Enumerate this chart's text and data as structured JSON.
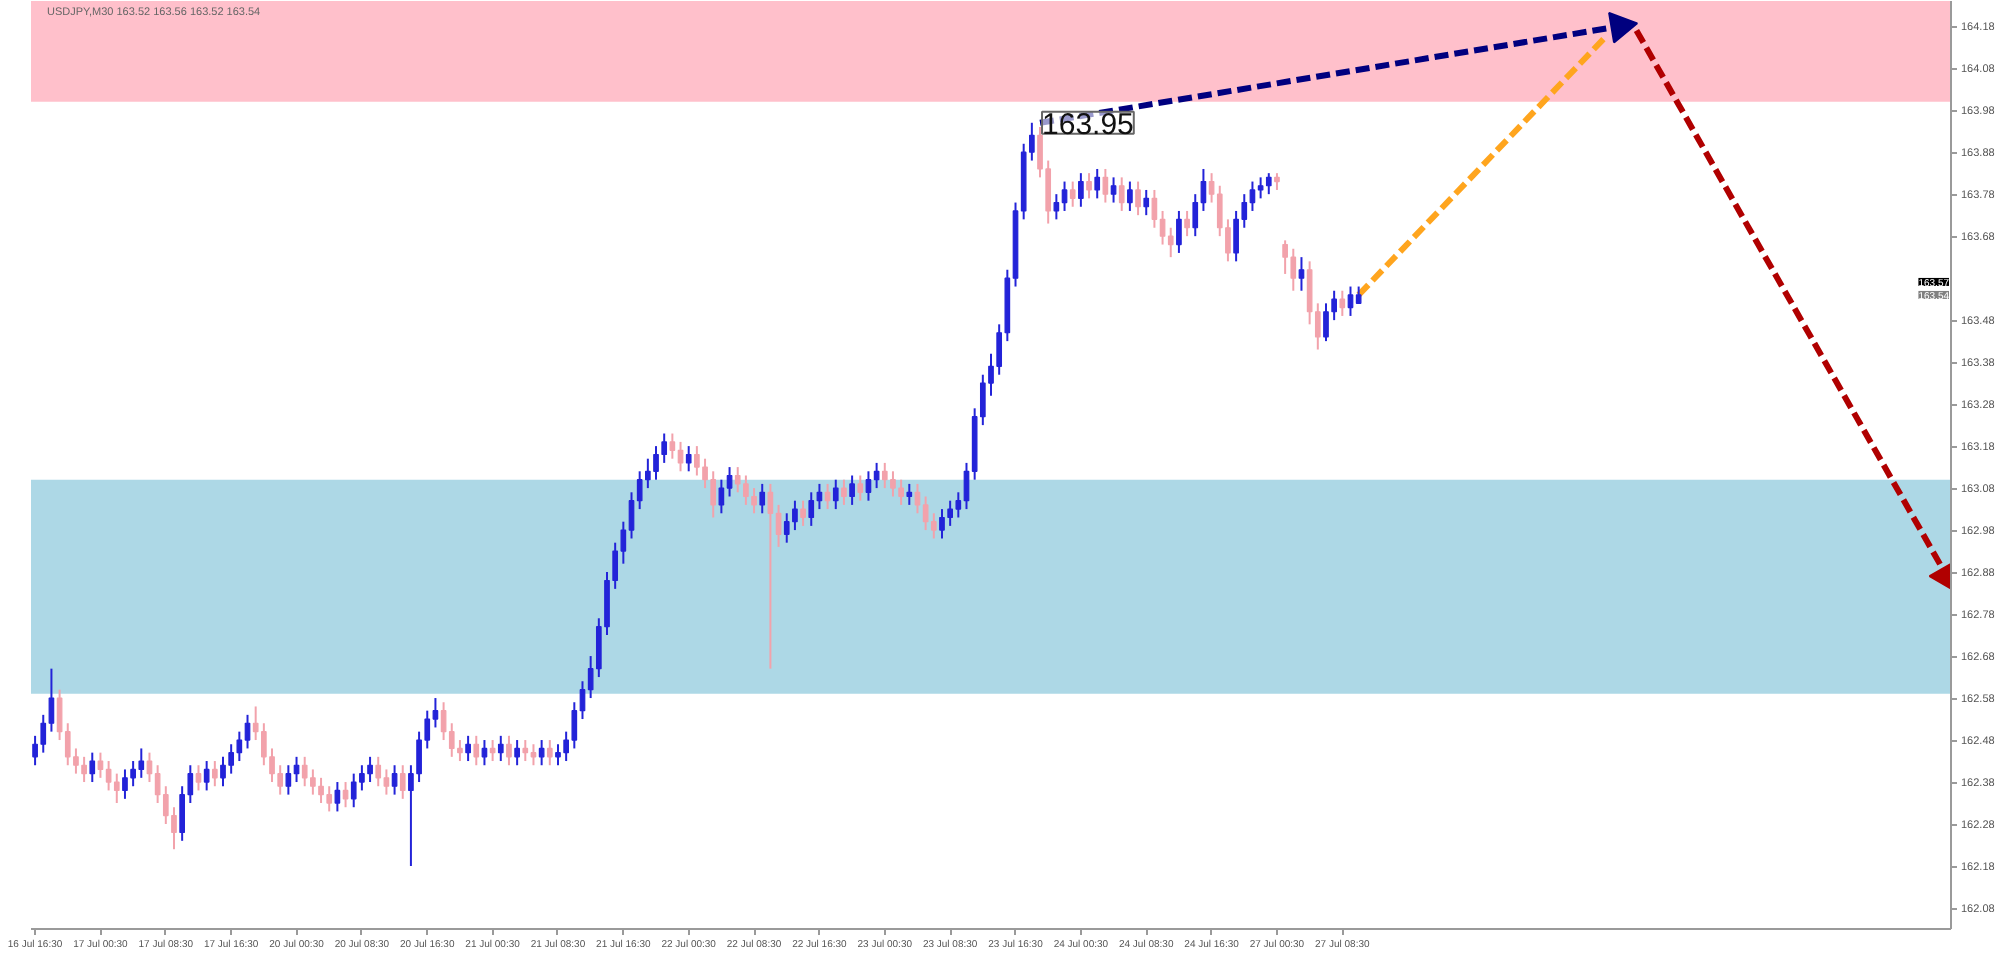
{
  "chart_data": {
    "type": "candlestick",
    "title": "USDJPY,M30 163.52 163.56 163.52 163.54",
    "categories": [
      "16 Jul 16:30",
      null,
      null,
      null,
      null,
      null,
      null,
      null,
      "17 Jul 00:30",
      null,
      null,
      null,
      null,
      null,
      null,
      null,
      "17 Jul 08:30",
      null,
      null,
      null,
      null,
      null,
      null,
      null,
      "17 Jul 16:30",
      null,
      null,
      null,
      null,
      null,
      null,
      null,
      "20 Jul 00:30",
      null,
      null,
      null,
      null,
      null,
      null,
      null,
      "20 Jul 08:30",
      null,
      null,
      null,
      null,
      null,
      null,
      null,
      "20 Jul 16:30",
      null,
      null,
      null,
      null,
      null,
      null,
      null,
      "21 Jul 00:30",
      null,
      null,
      null,
      null,
      null,
      null,
      null,
      "21 Jul 08:30",
      null,
      null,
      null,
      null,
      null,
      null,
      null,
      "21 Jul 16:30",
      null,
      null,
      null,
      null,
      null,
      null,
      null,
      "22 Jul 00:30",
      null,
      null,
      null,
      null,
      null,
      null,
      null,
      "22 Jul 08:30",
      null,
      null,
      null,
      null,
      null,
      null,
      null,
      "22 Jul 16:30",
      null,
      null,
      null,
      null,
      null,
      null,
      null,
      "23 Jul 00:30",
      null,
      null,
      null,
      null,
      null,
      null,
      null,
      "23 Jul 08:30",
      null,
      null,
      null,
      null,
      null,
      null,
      null,
      "23 Jul 16:30",
      null,
      null,
      null,
      null,
      null,
      null,
      null,
      "24 Jul 00:30",
      null,
      null,
      null,
      null,
      null,
      null,
      null,
      "24 Jul 08:30",
      null,
      null,
      null,
      null,
      null,
      null,
      null,
      "24 Jul 16:30",
      null,
      null,
      null,
      null,
      null,
      null,
      null,
      "27 Jul 00:30",
      null,
      null,
      null,
      null,
      null,
      null,
      null,
      "27 Jul 08:30",
      null,
      null,
      null,
      null,
      null,
      null,
      null,
      null,
      null,
      null,
      null,
      null,
      null,
      null,
      null,
      null,
      null,
      null,
      null,
      null,
      null,
      null,
      null,
      null,
      null,
      null,
      null,
      null,
      null,
      null,
      null,
      null,
      null,
      null,
      null,
      null,
      null,
      null,
      null,
      null,
      null,
      null,
      null,
      null,
      null,
      null,
      null,
      null,
      null,
      null,
      null,
      null,
      null,
      null,
      null,
      null,
      null,
      null,
      null,
      null,
      null,
      null,
      null,
      null,
      null,
      null,
      null,
      null,
      null,
      null,
      null,
      null,
      null,
      null
    ],
    "ohlc": [
      [
        162.44,
        162.49,
        162.42,
        162.47
      ],
      [
        162.47,
        162.54,
        162.45,
        162.52
      ],
      [
        162.52,
        162.65,
        162.5,
        162.58
      ],
      [
        162.58,
        162.6,
        162.48,
        162.5
      ],
      [
        162.5,
        162.52,
        162.42,
        162.44
      ],
      [
        162.44,
        162.46,
        162.4,
        162.42
      ],
      [
        162.42,
        162.44,
        162.38,
        162.4
      ],
      [
        162.4,
        162.45,
        162.38,
        162.43
      ],
      [
        162.43,
        162.45,
        162.39,
        162.41
      ],
      [
        162.41,
        162.43,
        162.36,
        162.38
      ],
      [
        162.38,
        162.4,
        162.33,
        162.36
      ],
      [
        162.36,
        162.41,
        162.34,
        162.39
      ],
      [
        162.39,
        162.43,
        162.37,
        162.41
      ],
      [
        162.41,
        162.46,
        162.39,
        162.43
      ],
      [
        162.43,
        162.45,
        162.38,
        162.4
      ],
      [
        162.4,
        162.42,
        162.33,
        162.35
      ],
      [
        162.35,
        162.37,
        162.28,
        162.3
      ],
      [
        162.3,
        162.32,
        162.22,
        162.26
      ],
      [
        162.26,
        162.37,
        162.24,
        162.35
      ],
      [
        162.35,
        162.42,
        162.33,
        162.4
      ],
      [
        162.4,
        162.42,
        162.36,
        162.38
      ],
      [
        162.38,
        162.43,
        162.36,
        162.41
      ],
      [
        162.41,
        162.43,
        162.37,
        162.39
      ],
      [
        162.39,
        162.44,
        162.37,
        162.42
      ],
      [
        162.42,
        162.47,
        162.4,
        162.45
      ],
      [
        162.45,
        162.5,
        162.43,
        162.48
      ],
      [
        162.48,
        162.54,
        162.46,
        162.52
      ],
      [
        162.52,
        162.56,
        162.48,
        162.5
      ],
      [
        162.5,
        162.52,
        162.42,
        162.44
      ],
      [
        162.44,
        162.46,
        162.38,
        162.4
      ],
      [
        162.4,
        162.42,
        162.35,
        162.37
      ],
      [
        162.37,
        162.42,
        162.35,
        162.4
      ],
      [
        162.4,
        162.44,
        162.38,
        162.42
      ],
      [
        162.42,
        162.44,
        162.37,
        162.39
      ],
      [
        162.39,
        162.41,
        162.35,
        162.37
      ],
      [
        162.37,
        162.39,
        162.33,
        162.35
      ],
      [
        162.35,
        162.37,
        162.31,
        162.33
      ],
      [
        162.33,
        162.38,
        162.31,
        162.36
      ],
      [
        162.36,
        162.38,
        162.32,
        162.34
      ],
      [
        162.34,
        162.4,
        162.32,
        162.38
      ],
      [
        162.38,
        162.42,
        162.36,
        162.4
      ],
      [
        162.4,
        162.44,
        162.38,
        162.42
      ],
      [
        162.42,
        162.44,
        162.37,
        162.39
      ],
      [
        162.39,
        162.41,
        162.35,
        162.37
      ],
      [
        162.37,
        162.42,
        162.35,
        162.4
      ],
      [
        162.4,
        162.42,
        162.34,
        162.36
      ],
      [
        162.36,
        162.42,
        162.18,
        162.4
      ],
      [
        162.4,
        162.5,
        162.38,
        162.48
      ],
      [
        162.48,
        162.55,
        162.46,
        162.53
      ],
      [
        162.53,
        162.58,
        162.51,
        162.55
      ],
      [
        162.55,
        162.57,
        162.48,
        162.5
      ],
      [
        162.5,
        162.52,
        162.44,
        162.46
      ],
      [
        162.46,
        162.48,
        162.43,
        162.45
      ],
      [
        162.45,
        162.49,
        162.43,
        162.47
      ],
      [
        162.47,
        162.49,
        162.42,
        162.44
      ],
      [
        162.44,
        162.48,
        162.42,
        162.46
      ],
      [
        162.46,
        162.48,
        162.43,
        162.45
      ],
      [
        162.45,
        162.49,
        162.43,
        162.47
      ],
      [
        162.47,
        162.49,
        162.42,
        162.44
      ],
      [
        162.44,
        162.48,
        162.42,
        162.46
      ],
      [
        162.46,
        162.48,
        162.43,
        162.45
      ],
      [
        162.45,
        162.47,
        162.42,
        162.44
      ],
      [
        162.44,
        162.48,
        162.42,
        162.46
      ],
      [
        162.46,
        162.48,
        162.42,
        162.44
      ],
      [
        162.44,
        162.47,
        162.42,
        162.45
      ],
      [
        162.45,
        162.5,
        162.43,
        162.48
      ],
      [
        162.48,
        162.57,
        162.46,
        162.55
      ],
      [
        162.55,
        162.62,
        162.53,
        162.6
      ],
      [
        162.6,
        162.68,
        162.58,
        162.65
      ],
      [
        162.65,
        162.77,
        162.63,
        162.75
      ],
      [
        162.75,
        162.88,
        162.73,
        162.86
      ],
      [
        162.86,
        162.95,
        162.84,
        162.93
      ],
      [
        162.93,
        163.0,
        162.9,
        162.98
      ],
      [
        162.98,
        163.07,
        162.96,
        163.05
      ],
      [
        163.05,
        163.12,
        163.03,
        163.1
      ],
      [
        163.1,
        163.15,
        163.08,
        163.12
      ],
      [
        163.12,
        163.18,
        163.1,
        163.16
      ],
      [
        163.16,
        163.21,
        163.14,
        163.19
      ],
      [
        163.19,
        163.21,
        163.15,
        163.17
      ],
      [
        163.17,
        163.19,
        163.12,
        163.14
      ],
      [
        163.14,
        163.18,
        163.12,
        163.16
      ],
      [
        163.16,
        163.18,
        163.11,
        163.13
      ],
      [
        163.13,
        163.15,
        163.08,
        163.1
      ],
      [
        163.1,
        163.12,
        163.01,
        163.04
      ],
      [
        163.04,
        163.1,
        163.02,
        163.08
      ],
      [
        163.08,
        163.13,
        163.06,
        163.11
      ],
      [
        163.11,
        163.13,
        163.07,
        163.09
      ],
      [
        163.09,
        163.11,
        163.04,
        163.06
      ],
      [
        163.06,
        163.08,
        163.02,
        163.04
      ],
      [
        163.04,
        163.09,
        163.02,
        163.07
      ],
      [
        163.07,
        163.09,
        162.65,
        163.02
      ],
      [
        163.02,
        163.04,
        162.94,
        162.97
      ],
      [
        162.97,
        163.02,
        162.95,
        163.0
      ],
      [
        163.0,
        163.05,
        162.98,
        163.03
      ],
      [
        163.03,
        163.05,
        162.99,
        163.01
      ],
      [
        163.01,
        163.07,
        162.99,
        163.05
      ],
      [
        163.05,
        163.09,
        163.03,
        163.07
      ],
      [
        163.07,
        163.09,
        163.03,
        163.05
      ],
      [
        163.05,
        163.1,
        163.03,
        163.08
      ],
      [
        163.08,
        163.1,
        163.04,
        163.06
      ],
      [
        163.06,
        163.11,
        163.04,
        163.09
      ],
      [
        163.09,
        163.11,
        163.05,
        163.07
      ],
      [
        163.07,
        163.12,
        163.05,
        163.1
      ],
      [
        163.1,
        163.14,
        163.08,
        163.12
      ],
      [
        163.12,
        163.14,
        163.08,
        163.1
      ],
      [
        163.1,
        163.12,
        163.06,
        163.08
      ],
      [
        163.08,
        163.1,
        163.04,
        163.06
      ],
      [
        163.06,
        163.09,
        163.04,
        163.07
      ],
      [
        163.07,
        163.09,
        163.02,
        163.04
      ],
      [
        163.04,
        163.06,
        162.98,
        163.0
      ],
      [
        163.0,
        163.02,
        162.96,
        162.98
      ],
      [
        162.98,
        163.03,
        162.96,
        163.01
      ],
      [
        163.01,
        163.05,
        162.99,
        163.03
      ],
      [
        163.03,
        163.07,
        163.01,
        163.05
      ],
      [
        163.05,
        163.14,
        163.03,
        163.12
      ],
      [
        163.12,
        163.27,
        163.1,
        163.25
      ],
      [
        163.25,
        163.35,
        163.23,
        163.33
      ],
      [
        163.33,
        163.4,
        163.3,
        163.37
      ],
      [
        163.37,
        163.47,
        163.35,
        163.45
      ],
      [
        163.45,
        163.6,
        163.43,
        163.58
      ],
      [
        163.58,
        163.76,
        163.56,
        163.74
      ],
      [
        163.74,
        163.9,
        163.72,
        163.88
      ],
      [
        163.88,
        163.95,
        163.86,
        163.92
      ],
      [
        163.92,
        163.94,
        163.82,
        163.84
      ],
      [
        163.84,
        163.86,
        163.71,
        163.74
      ],
      [
        163.74,
        163.78,
        163.72,
        163.76
      ],
      [
        163.76,
        163.81,
        163.74,
        163.79
      ],
      [
        163.79,
        163.81,
        163.75,
        163.77
      ],
      [
        163.77,
        163.83,
        163.75,
        163.81
      ],
      [
        163.81,
        163.83,
        163.77,
        163.79
      ],
      [
        163.79,
        163.84,
        163.77,
        163.82
      ],
      [
        163.82,
        163.84,
        163.76,
        163.78
      ],
      [
        163.78,
        163.82,
        163.76,
        163.8
      ],
      [
        163.8,
        163.82,
        163.74,
        163.76
      ],
      [
        163.76,
        163.81,
        163.74,
        163.79
      ],
      [
        163.79,
        163.81,
        163.73,
        163.75
      ],
      [
        163.75,
        163.79,
        163.73,
        163.77
      ],
      [
        163.77,
        163.79,
        163.7,
        163.72
      ],
      [
        163.72,
        163.74,
        163.66,
        163.68
      ],
      [
        163.68,
        163.7,
        163.63,
        163.66
      ],
      [
        163.66,
        163.74,
        163.64,
        163.72
      ],
      [
        163.72,
        163.74,
        163.68,
        163.7
      ],
      [
        163.7,
        163.78,
        163.68,
        163.76
      ],
      [
        163.76,
        163.84,
        163.74,
        163.81
      ],
      [
        163.81,
        163.83,
        163.76,
        163.78
      ],
      [
        163.78,
        163.8,
        163.68,
        163.7
      ],
      [
        163.7,
        163.72,
        163.62,
        163.64
      ],
      [
        163.64,
        163.74,
        163.62,
        163.72
      ],
      [
        163.72,
        163.78,
        163.7,
        163.76
      ],
      [
        163.76,
        163.81,
        163.74,
        163.79
      ],
      [
        163.79,
        163.82,
        163.77,
        163.8
      ],
      [
        163.8,
        163.83,
        163.78,
        163.82
      ],
      [
        163.82,
        163.83,
        163.79,
        163.81
      ],
      [
        163.66,
        163.67,
        163.59,
        163.63
      ],
      [
        163.63,
        163.65,
        163.55,
        163.58
      ],
      [
        163.58,
        163.63,
        163.55,
        163.6
      ],
      [
        163.6,
        163.62,
        163.47,
        163.5
      ],
      [
        163.5,
        163.52,
        163.41,
        163.44
      ],
      [
        163.44,
        163.52,
        163.43,
        163.5
      ],
      [
        163.5,
        163.55,
        163.48,
        163.53
      ],
      [
        163.53,
        163.55,
        163.49,
        163.51
      ],
      [
        163.51,
        163.56,
        163.49,
        163.54
      ],
      [
        163.52,
        163.56,
        163.52,
        163.54
      ],
      null,
      null,
      null,
      null,
      null,
      null,
      null,
      null,
      null,
      null,
      null,
      null,
      null,
      null,
      null,
      null,
      null,
      null,
      null,
      null,
      null,
      null,
      null,
      null,
      null,
      null,
      null,
      null,
      null,
      null,
      null,
      null,
      null,
      null,
      null,
      null,
      null,
      null,
      null,
      null,
      null,
      null,
      null,
      null,
      null,
      null,
      null,
      null,
      null,
      null,
      null,
      null,
      null,
      null,
      null,
      null,
      null,
      null,
      null,
      null,
      null,
      null,
      null,
      null,
      null,
      null,
      null,
      null,
      null,
      null,
      null,
      null
    ],
    "colors": [
      "#2323d8",
      "#2323d8",
      "#2323d8",
      "#f2a2ab",
      "#f2a2ab",
      "#f2a2ab",
      "#f2a2ab",
      "#2323d8",
      "#f2a2ab",
      "#f2a2ab",
      "#f2a2ab",
      "#2323d8",
      "#2323d8",
      "#2323d8",
      "#f2a2ab",
      "#f2a2ab",
      "#f2a2ab",
      "#f2a2ab",
      "#2323d8",
      "#2323d8",
      "#f2a2ab",
      "#2323d8",
      "#f2a2ab",
      "#2323d8",
      "#2323d8",
      "#2323d8",
      "#2323d8",
      "#f2a2ab",
      "#f2a2ab",
      "#f2a2ab",
      "#f2a2ab",
      "#2323d8",
      "#2323d8",
      "#f2a2ab",
      "#f2a2ab",
      "#f2a2ab",
      "#f2a2ab",
      "#2323d8",
      "#f2a2ab",
      "#2323d8",
      "#2323d8",
      "#2323d8",
      "#f2a2ab",
      "#f2a2ab",
      "#2323d8",
      "#f2a2ab",
      "#2323d8",
      "#2323d8",
      "#2323d8",
      "#2323d8",
      "#f2a2ab",
      "#f2a2ab",
      "#f2a2ab",
      "#2323d8",
      "#f2a2ab",
      "#2323d8",
      "#f2a2ab",
      "#2323d8",
      "#f2a2ab",
      "#2323d8",
      "#f2a2ab",
      "#f2a2ab",
      "#2323d8",
      "#f2a2ab",
      "#2323d8",
      "#2323d8",
      "#2323d8",
      "#2323d8",
      "#2323d8",
      "#2323d8",
      "#2323d8",
      "#2323d8",
      "#2323d8",
      "#2323d8",
      "#2323d8",
      "#2323d8",
      "#2323d8",
      "#2323d8",
      "#f2a2ab",
      "#f2a2ab",
      "#2323d8",
      "#f2a2ab",
      "#f2a2ab",
      "#f2a2ab",
      "#2323d8",
      "#2323d8",
      "#f2a2ab",
      "#f2a2ab",
      "#f2a2ab",
      "#2323d8",
      "#f2a2ab",
      "#f2a2ab",
      "#2323d8",
      "#2323d8",
      "#f2a2ab",
      "#2323d8",
      "#2323d8",
      "#f2a2ab",
      "#2323d8",
      "#f2a2ab",
      "#2323d8",
      "#f2a2ab",
      "#2323d8",
      "#2323d8",
      "#f2a2ab",
      "#f2a2ab",
      "#f2a2ab",
      "#2323d8",
      "#f2a2ab",
      "#f2a2ab",
      "#f2a2ab",
      "#2323d8",
      "#2323d8",
      "#2323d8",
      "#2323d8",
      "#2323d8",
      "#2323d8",
      "#2323d8",
      "#2323d8",
      "#2323d8",
      "#2323d8",
      "#2323d8",
      "#2323d8",
      "#f2a2ab",
      "#f2a2ab",
      "#2323d8",
      "#2323d8",
      "#f2a2ab",
      "#2323d8",
      "#f2a2ab",
      "#2323d8",
      "#f2a2ab",
      "#2323d8",
      "#f2a2ab",
      "#2323d8",
      "#f2a2ab",
      "#2323d8",
      "#f2a2ab",
      "#f2a2ab",
      "#f2a2ab",
      "#2323d8",
      "#f2a2ab",
      "#2323d8",
      "#2323d8",
      "#f2a2ab",
      "#f2a2ab",
      "#f2a2ab",
      "#2323d8",
      "#2323d8",
      "#2323d8",
      "#2323d8",
      "#2323d8",
      "#f2a2ab",
      "#f2a2ab",
      "#f2a2ab",
      "#2323d8",
      "#f2a2ab",
      "#f2a2ab",
      "#2323d8",
      "#2323d8",
      "#f2a2ab",
      "#2323d8",
      "#2323d8",
      null,
      null,
      null,
      null,
      null,
      null,
      null,
      null,
      null,
      null,
      null,
      null,
      null,
      null,
      null,
      null,
      null,
      null,
      null,
      null,
      null,
      null,
      null,
      null,
      null,
      null,
      null,
      null,
      null,
      null,
      null,
      null,
      null,
      null,
      null,
      null,
      null,
      null,
      null,
      null,
      null,
      null,
      null,
      null,
      null,
      null,
      null,
      null,
      null,
      null,
      null,
      null,
      null,
      null,
      null,
      null,
      null,
      null,
      null,
      null,
      null,
      null,
      null,
      null,
      null,
      null,
      null,
      null,
      null,
      null,
      null,
      null
    ],
    "series": [
      {
        "type": "line",
        "color": "#ffa51e",
        "line_style": "dashed",
        "values": [
          null,
          null,
          null,
          null,
          null,
          null,
          null,
          null,
          null,
          null,
          null,
          null,
          null,
          null,
          null,
          null,
          null,
          null,
          null,
          null,
          null,
          null,
          null,
          null,
          null,
          null,
          null,
          null,
          null,
          null,
          null,
          null,
          null,
          null,
          null,
          null,
          null,
          null,
          null,
          null,
          null,
          null,
          null,
          null,
          null,
          null,
          null,
          null,
          null,
          null,
          null,
          null,
          null,
          null,
          null,
          null,
          null,
          null,
          null,
          null,
          null,
          null,
          null,
          null,
          null,
          null,
          null,
          null,
          null,
          null,
          null,
          null,
          null,
          null,
          null,
          null,
          null,
          null,
          null,
          null,
          null,
          null,
          null,
          null,
          null,
          null,
          null,
          null,
          null,
          null,
          null,
          null,
          null,
          null,
          null,
          null,
          null,
          null,
          null,
          null,
          null,
          null,
          null,
          null,
          null,
          null,
          null,
          null,
          null,
          null,
          null,
          null,
          null,
          null,
          null,
          null,
          null,
          null,
          null,
          null,
          null,
          null,
          null,
          null,
          null,
          null,
          null,
          null,
          null,
          null,
          null,
          null,
          null,
          null,
          null,
          null,
          null,
          null,
          null,
          null,
          null,
          null,
          null,
          null,
          null,
          null,
          null,
          null,
          null,
          null,
          null,
          null,
          null,
          null,
          null,
          null,
          null,
          null,
          null,
          null,
          null,
          null,
          163.54,
          null,
          null,
          null,
          null,
          null,
          null,
          null,
          null,
          null,
          null,
          null,
          null,
          null,
          null,
          null,
          null,
          null,
          null,
          null,
          null,
          null,
          null,
          null,
          null,
          null,
          null,
          null,
          null,
          null,
          164.15,
          null,
          null,
          null,
          null,
          null,
          null,
          null,
          null,
          null,
          null,
          null,
          null,
          null,
          null,
          null,
          null,
          null,
          null,
          null,
          null,
          null,
          null,
          null,
          null,
          null,
          null,
          null,
          null,
          null,
          null,
          null,
          null,
          null,
          null,
          null,
          null,
          null,
          null,
          null,
          null,
          null,
          null
        ]
      },
      {
        "type": "line",
        "color": "#00007f",
        "line_style": "dashed",
        "marker": "triangle",
        "values": [
          null,
          null,
          null,
          null,
          null,
          null,
          null,
          null,
          null,
          null,
          null,
          null,
          null,
          null,
          null,
          null,
          null,
          null,
          null,
          null,
          null,
          null,
          null,
          null,
          null,
          null,
          null,
          null,
          null,
          null,
          null,
          null,
          null,
          null,
          null,
          null,
          null,
          null,
          null,
          null,
          null,
          null,
          null,
          null,
          null,
          null,
          null,
          null,
          null,
          null,
          null,
          null,
          null,
          null,
          null,
          null,
          null,
          null,
          null,
          null,
          null,
          null,
          null,
          null,
          null,
          null,
          null,
          null,
          null,
          null,
          null,
          null,
          null,
          null,
          null,
          null,
          null,
          null,
          null,
          null,
          null,
          null,
          null,
          null,
          null,
          null,
          null,
          null,
          null,
          null,
          null,
          null,
          null,
          null,
          null,
          null,
          null,
          null,
          null,
          null,
          null,
          null,
          null,
          null,
          null,
          null,
          null,
          null,
          null,
          null,
          null,
          null,
          null,
          null,
          null,
          null,
          null,
          null,
          null,
          null,
          null,
          null,
          null,
          163.95,
          null,
          null,
          null,
          null,
          null,
          null,
          null,
          null,
          null,
          null,
          null,
          null,
          null,
          null,
          null,
          null,
          null,
          null,
          null,
          null,
          null,
          null,
          null,
          null,
          null,
          null,
          null,
          null,
          null,
          null,
          null,
          null,
          null,
          null,
          null,
          null,
          null,
          null,
          null,
          null,
          null,
          null,
          null,
          null,
          null,
          null,
          null,
          null,
          null,
          null,
          null,
          null,
          null,
          null,
          null,
          null,
          null,
          null,
          null,
          null,
          null,
          null,
          null,
          null,
          null,
          null,
          null,
          null,
          null,
          null,
          164.18,
          null,
          null,
          null,
          null,
          null,
          null,
          null,
          null,
          null,
          null,
          null,
          null,
          null,
          null,
          null,
          null,
          null,
          null,
          null,
          null,
          null,
          null,
          null,
          null,
          null,
          null,
          null,
          null,
          null,
          null,
          null,
          null,
          null,
          null,
          null,
          null,
          null,
          null,
          null,
          null
        ],
        "value_labels": [
          null,
          null,
          null,
          null,
          null,
          null,
          null,
          null,
          null,
          null,
          null,
          null,
          null,
          null,
          null,
          null,
          null,
          null,
          null,
          null,
          null,
          null,
          null,
          null,
          null,
          null,
          null,
          null,
          null,
          null,
          null,
          null,
          null,
          null,
          null,
          null,
          null,
          null,
          null,
          null,
          null,
          null,
          null,
          null,
          null,
          null,
          null,
          null,
          null,
          null,
          null,
          null,
          null,
          null,
          null,
          null,
          null,
          null,
          null,
          null,
          null,
          null,
          null,
          null,
          null,
          null,
          null,
          null,
          null,
          null,
          null,
          null,
          null,
          null,
          null,
          null,
          null,
          null,
          null,
          null,
          null,
          null,
          null,
          null,
          null,
          null,
          null,
          null,
          null,
          null,
          null,
          null,
          null,
          null,
          null,
          null,
          null,
          null,
          null,
          null,
          null,
          null,
          null,
          null,
          null,
          null,
          null,
          null,
          null,
          null,
          null,
          null,
          null,
          null,
          null,
          null,
          null,
          null,
          null,
          null,
          null,
          null,
          null,
          "163.95",
          null,
          null,
          null,
          null,
          null,
          null,
          null,
          null,
          null,
          null,
          null,
          null,
          null,
          null,
          null,
          null,
          null,
          null,
          null,
          null,
          null,
          null,
          null,
          null,
          null,
          null,
          null,
          null,
          null,
          null,
          null,
          null,
          null,
          null,
          null,
          null,
          null,
          null,
          null,
          null,
          null,
          null,
          null,
          null,
          null,
          null,
          null,
          null,
          null,
          null,
          null,
          null,
          null,
          null,
          null,
          null,
          null,
          null,
          null,
          null,
          null,
          null,
          null,
          null,
          null,
          null,
          null,
          null,
          null,
          null,
          null,
          null,
          null,
          null,
          null,
          null,
          null,
          null,
          null,
          null,
          null,
          null,
          null,
          null,
          null,
          null,
          null,
          null,
          null,
          null,
          null,
          null,
          null,
          null,
          null,
          null,
          null,
          null,
          null,
          null,
          null,
          null,
          null,
          null,
          null,
          null,
          null,
          null,
          null,
          null,
          null
        ]
      },
      {
        "type": "line",
        "color": "#b00000",
        "line_style": "dashed",
        "marker": "triangle",
        "values": [
          null,
          null,
          null,
          null,
          null,
          null,
          null,
          null,
          null,
          null,
          null,
          null,
          null,
          null,
          null,
          null,
          null,
          null,
          null,
          null,
          null,
          null,
          null,
          null,
          null,
          null,
          null,
          null,
          null,
          null,
          null,
          null,
          null,
          null,
          null,
          null,
          null,
          null,
          null,
          null,
          null,
          null,
          null,
          null,
          null,
          null,
          null,
          null,
          null,
          null,
          null,
          null,
          null,
          null,
          null,
          null,
          null,
          null,
          null,
          null,
          null,
          null,
          null,
          null,
          null,
          null,
          null,
          null,
          null,
          null,
          null,
          null,
          null,
          null,
          null,
          null,
          null,
          null,
          null,
          null,
          null,
          null,
          null,
          null,
          null,
          null,
          null,
          null,
          null,
          null,
          null,
          null,
          null,
          null,
          null,
          null,
          null,
          null,
          null,
          null,
          null,
          null,
          null,
          null,
          null,
          null,
          null,
          null,
          null,
          null,
          null,
          null,
          null,
          null,
          null,
          null,
          null,
          null,
          null,
          null,
          null,
          null,
          null,
          null,
          null,
          null,
          null,
          null,
          null,
          null,
          null,
          null,
          null,
          null,
          null,
          null,
          null,
          null,
          null,
          null,
          null,
          null,
          null,
          null,
          null,
          null,
          null,
          null,
          null,
          null,
          null,
          null,
          null,
          null,
          null,
          null,
          null,
          null,
          null,
          null,
          null,
          null,
          null,
          null,
          null,
          null,
          null,
          null,
          null,
          null,
          null,
          null,
          null,
          null,
          null,
          null,
          null,
          null,
          null,
          null,
          null,
          null,
          null,
          null,
          null,
          null,
          null,
          null,
          null,
          null,
          null,
          null,
          null,
          null,
          null,
          null,
          164.17,
          null,
          null,
          null,
          null,
          null,
          null,
          null,
          null,
          null,
          null,
          null,
          null,
          null,
          null,
          null,
          null,
          null,
          null,
          null,
          null,
          null,
          null,
          null,
          null,
          null,
          null,
          null,
          null,
          null,
          null,
          null,
          null,
          null,
          null,
          null,
          null,
          null,
          162.87
        ]
      }
    ],
    "ylim": [
      162.03,
      164.24
    ],
    "yticks": [
      162.08,
      162.18,
      162.28,
      162.38,
      162.48,
      162.58,
      162.68,
      162.78,
      162.88,
      162.98,
      163.08,
      163.18,
      163.28,
      163.38,
      163.48,
      163.68,
      163.78,
      163.88,
      163.98,
      164.08,
      164.18
    ],
    "bands": [
      {
        "axis": "y",
        "from": 164.0,
        "to": 164.24,
        "color": "#ffc0cb"
      },
      {
        "axis": "y",
        "from": 162.59,
        "to": 163.1,
        "color": "#add8e6"
      }
    ],
    "annotations": [
      "163.57",
      "163.54"
    ]
  }
}
